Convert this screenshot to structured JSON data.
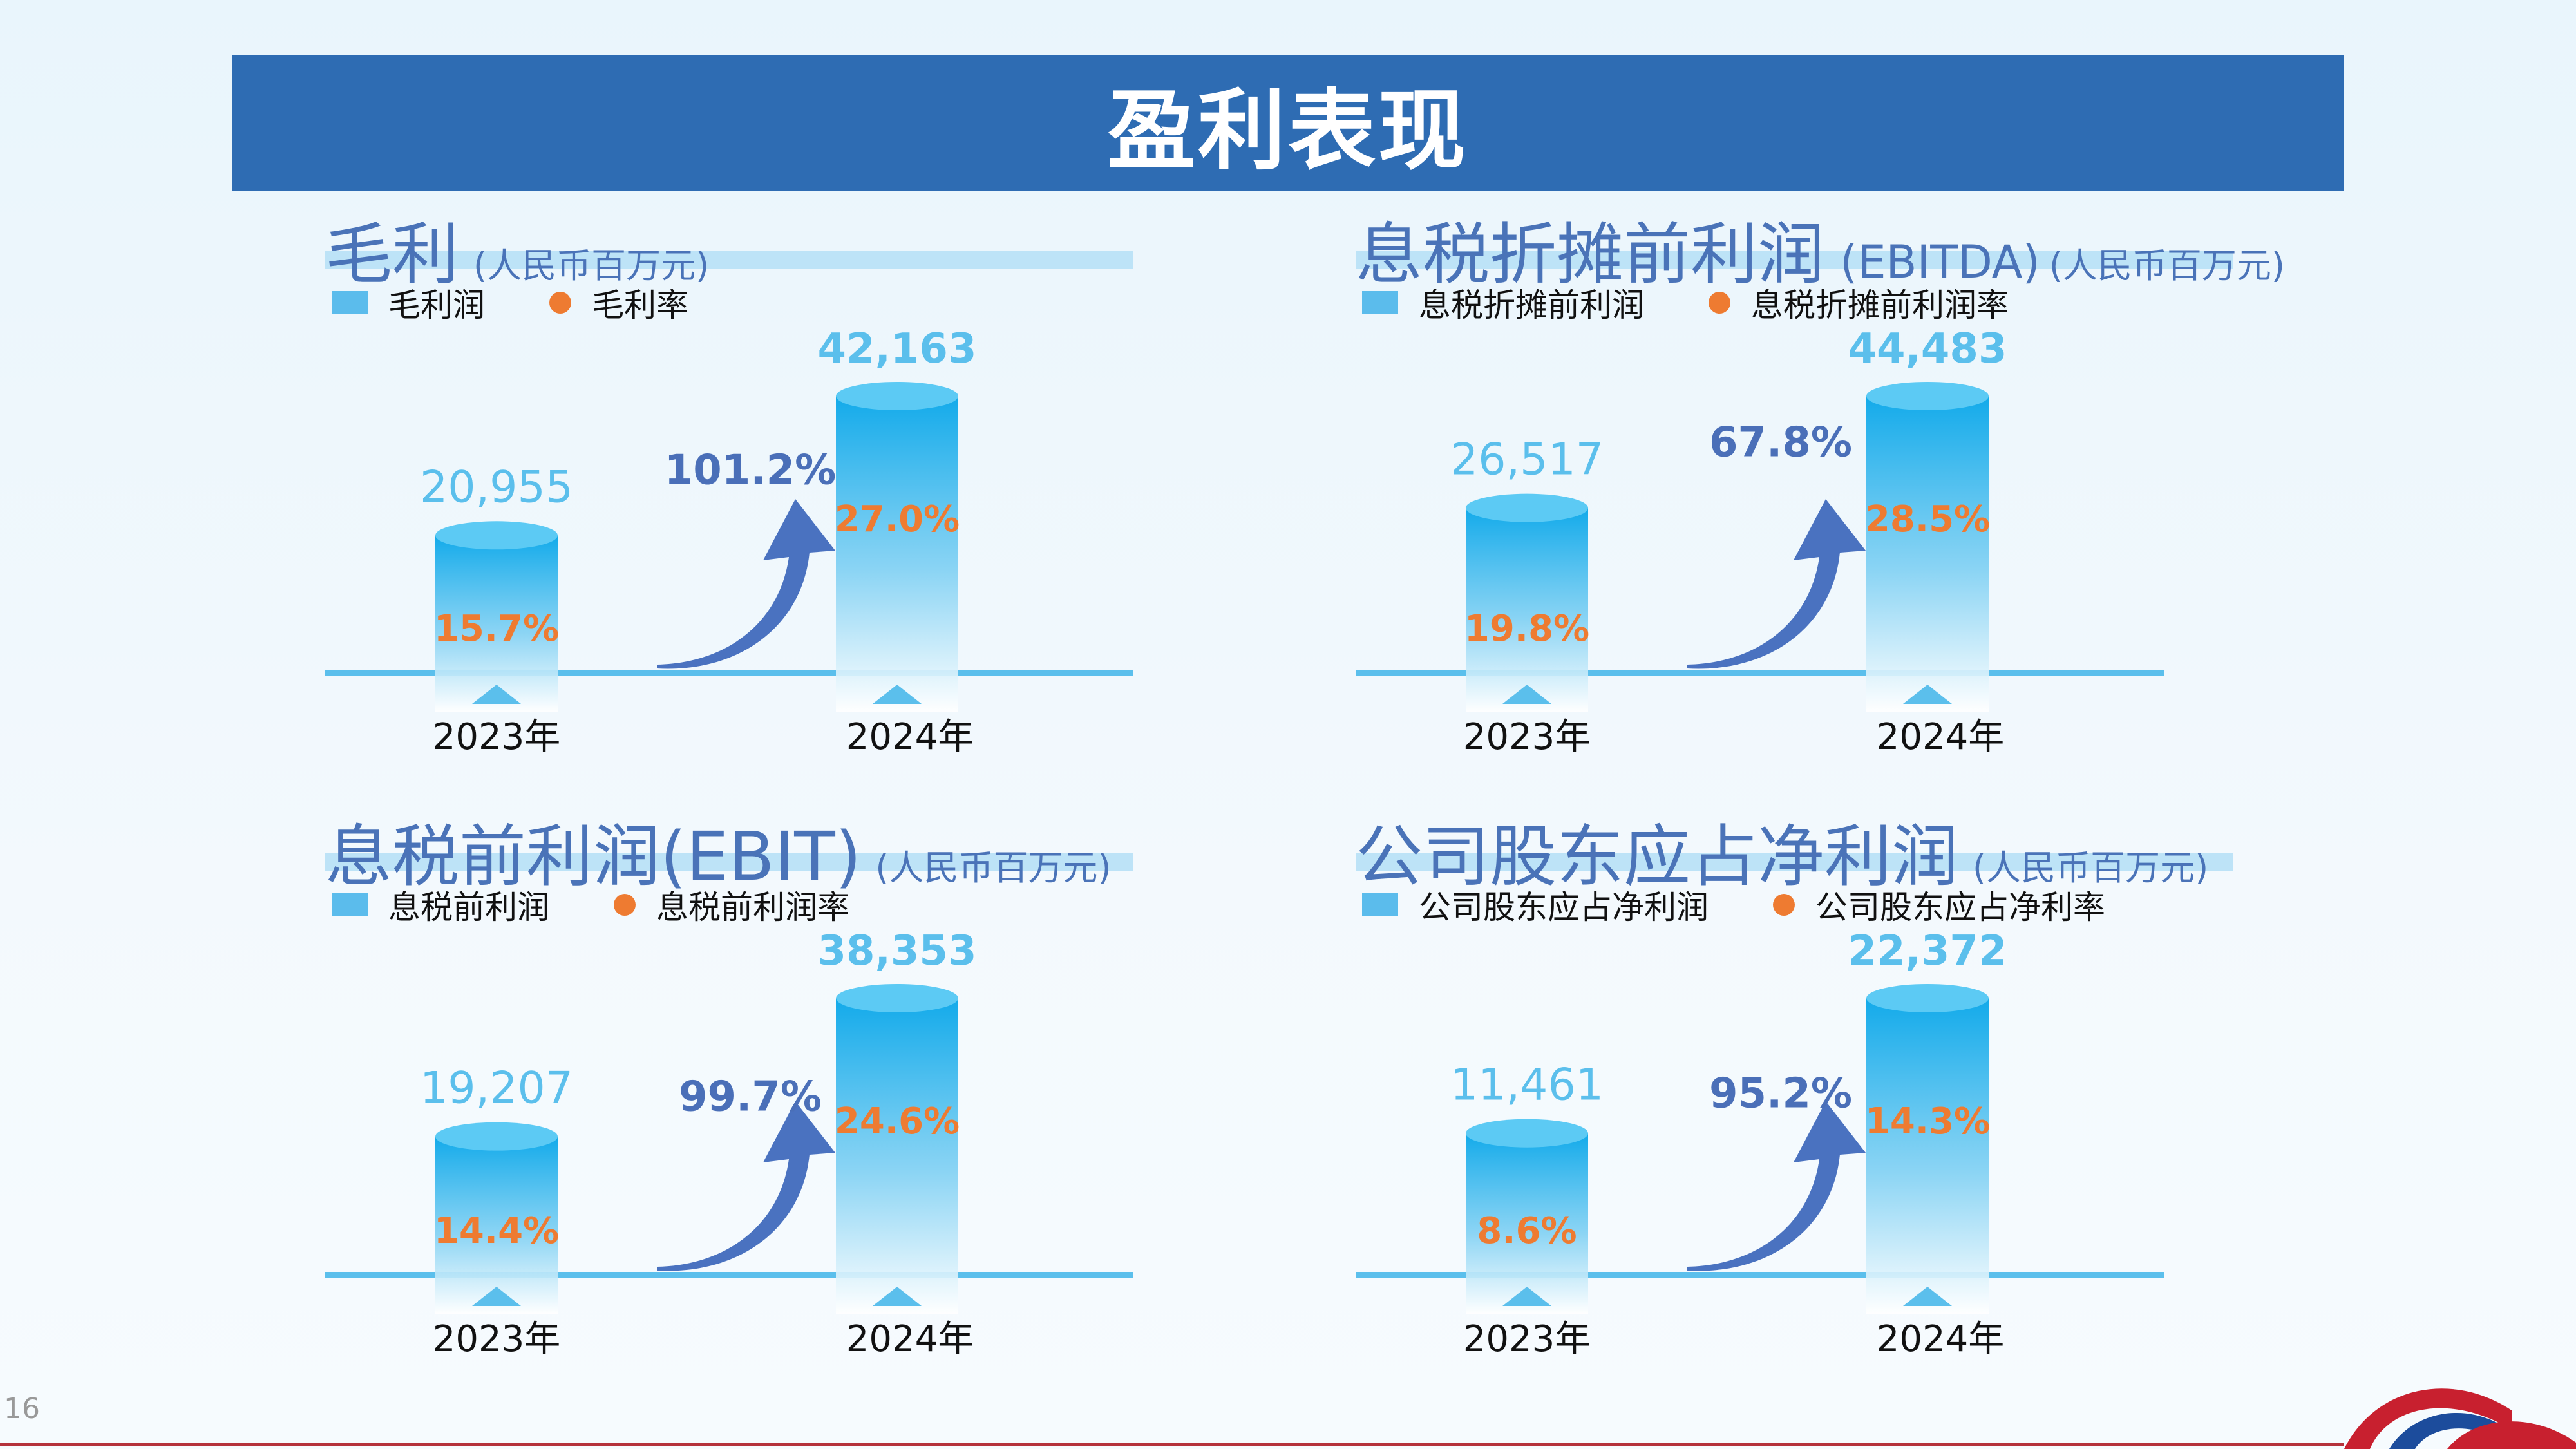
{
  "page": {
    "title": "盈利表现",
    "page_number": "16"
  },
  "colors": {
    "banner": "#2e6cb3",
    "bar": "#12aaea",
    "rate": "#ee7b31",
    "title": "#4a73b8",
    "value_prev": "#5bbfec",
    "growth": "#4a6fb8"
  },
  "panels": [
    {
      "title": "毛利",
      "unit": "(人民币百万元)",
      "legend_bar": "毛利润",
      "legend_rate": "毛利率"
    },
    {
      "title": "息税折摊前利润",
      "title_suffix": "(EBITDA)",
      "unit": "(人民币百万元)",
      "legend_bar": "息税折摊前利润",
      "legend_rate": "息税折摊前利润率"
    },
    {
      "title": "息税前利润(EBIT)",
      "unit": "(人民币百万元)",
      "legend_bar": "息税前利润",
      "legend_rate": "息税前利润率"
    },
    {
      "title": "公司股东应占净利润",
      "unit": "(人民币百万元)",
      "legend_bar": "公司股东应占净利润",
      "legend_rate": "公司股东应占净利率"
    }
  ],
  "chart_data": [
    {
      "type": "bar",
      "title": "毛利",
      "categories": [
        "2023年",
        "2024年"
      ],
      "values": [
        20955,
        42163
      ],
      "value_labels": [
        "20,955",
        "42,163"
      ],
      "rate_labels": [
        "15.7%",
        "27.0%"
      ],
      "growth_label": "101.2%",
      "unit": "人民币百万元"
    },
    {
      "type": "bar",
      "title": "息税折摊前利润 (EBITDA)",
      "categories": [
        "2023年",
        "2024年"
      ],
      "values": [
        26517,
        44483
      ],
      "value_labels": [
        "26,517",
        "44,483"
      ],
      "rate_labels": [
        "19.8%",
        "28.5%"
      ],
      "growth_label": "67.8%",
      "unit": "人民币百万元"
    },
    {
      "type": "bar",
      "title": "息税前利润(EBIT)",
      "categories": [
        "2023年",
        "2024年"
      ],
      "values": [
        19207,
        38353
      ],
      "value_labels": [
        "19,207",
        "38,353"
      ],
      "rate_labels": [
        "14.4%",
        "24.6%"
      ],
      "growth_label": "99.7%",
      "unit": "人民币百万元"
    },
    {
      "type": "bar",
      "title": "公司股东应占净利润",
      "categories": [
        "2023年",
        "2024年"
      ],
      "values": [
        11461,
        22372
      ],
      "value_labels": [
        "11,461",
        "22,372"
      ],
      "rate_labels": [
        "8.6%",
        "14.3%"
      ],
      "growth_label": "95.2%",
      "unit": "人民币百万元"
    }
  ]
}
